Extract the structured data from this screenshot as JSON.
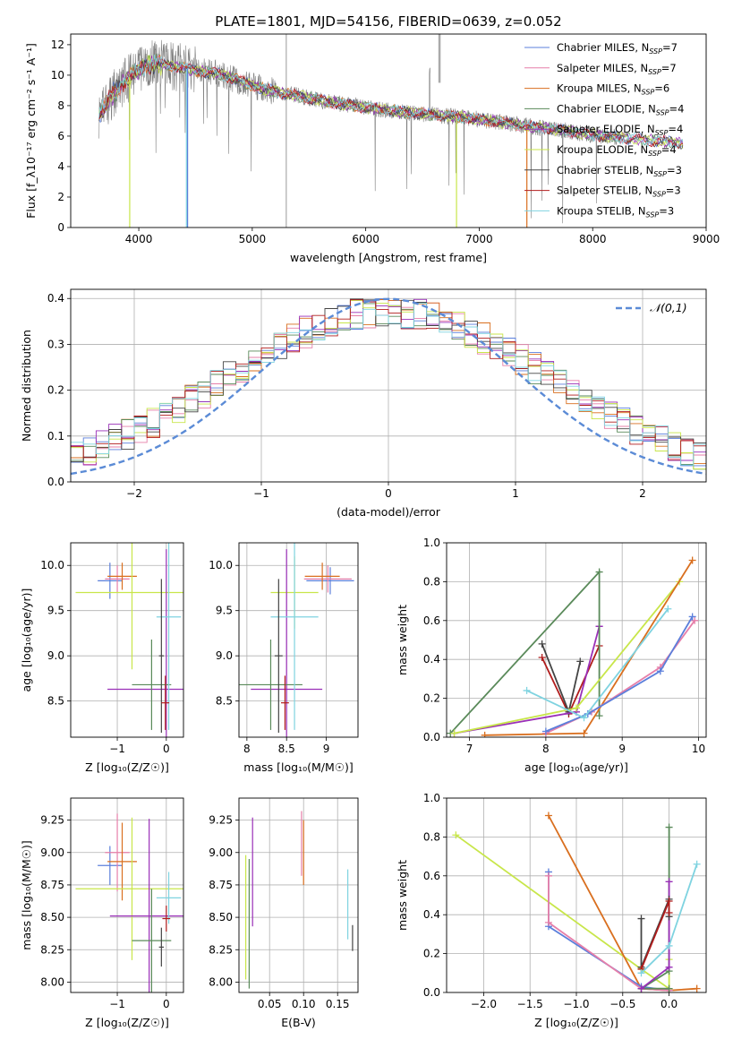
{
  "title": "PLATE=1801, MJD=54156, FIBERID=0639, z=0.052",
  "colors": {
    "chabrier_miles": "#5b7fdb",
    "salpeter_miles": "#e67fa9",
    "kroupa_miles": "#d96f1f",
    "chabrier_elodie": "#5a8a5a",
    "salpeter_elodie": "#9a2fb8",
    "kroupa_elodie": "#c8e64a",
    "chabrier_stelib": "#444444",
    "salpeter_stelib": "#b01c1c",
    "kroupa_stelib": "#7fd3e0",
    "data": "#808080",
    "gauss": "#5b8bd6"
  },
  "chart_data": [
    {
      "id": "spectrum",
      "type": "line",
      "xlabel": "wavelength [Angstrom, rest frame]",
      "ylabel": "Flux [f_λ10⁻¹⁷ erg cm⁻² s⁻¹ A⁻¹]",
      "xlim": [
        3400,
        9000
      ],
      "ylim": [
        0,
        12.7
      ],
      "xticks": [
        4000,
        5000,
        6000,
        7000,
        8000,
        9000
      ],
      "yticks": [
        0,
        2,
        4,
        6,
        8,
        10,
        12
      ],
      "grid": false,
      "legend_position": "top-right",
      "legend": [
        {
          "base": "Chabrier MILES, N",
          "sub": "SSP",
          "tail": "=7",
          "color_key": "chabrier_miles"
        },
        {
          "base": "Salpeter MILES, N",
          "sub": "SSP",
          "tail": "=7",
          "color_key": "salpeter_miles"
        },
        {
          "base": "Kroupa MILES, N",
          "sub": "SSP",
          "tail": "=6",
          "color_key": "kroupa_miles"
        },
        {
          "base": "Chabrier ELODIE, N",
          "sub": "SSP",
          "tail": "=4",
          "color_key": "chabrier_elodie"
        },
        {
          "base": "Salpeter ELODIE, N",
          "sub": "SSP",
          "tail": "=4",
          "color_key": "salpeter_elodie"
        },
        {
          "base": "Kroupa ELODIE, N",
          "sub": "SSP",
          "tail": "=4",
          "color_key": "kroupa_elodie"
        },
        {
          "base": "Chabrier STELIB, N",
          "sub": "SSP",
          "tail": "=3",
          "color_key": "chabrier_stelib"
        },
        {
          "base": "Salpeter STELIB, N",
          "sub": "SSP",
          "tail": "=3",
          "color_key": "salpeter_stelib"
        },
        {
          "base": "Kroupa STELIB, N",
          "sub": "SSP",
          "tail": "=3",
          "color_key": "kroupa_stelib"
        }
      ],
      "continuum": {
        "x": [
          3650,
          3800,
          3950,
          4100,
          4300,
          4500,
          4700,
          4900,
          5100,
          5300,
          5500,
          5700,
          6000,
          6300,
          6600,
          6900,
          7200,
          7500,
          7800,
          8100,
          8400,
          8700,
          8900
        ],
        "y": [
          7.4,
          9.0,
          10.1,
          10.8,
          10.6,
          10.3,
          10.1,
          9.6,
          9.1,
          8.8,
          8.5,
          8.2,
          7.9,
          7.6,
          7.4,
          7.2,
          6.9,
          6.6,
          6.3,
          6.0,
          5.8,
          5.6,
          5.4
        ]
      },
      "data_range": [
        3650,
        8250
      ],
      "model_dropouts": [
        {
          "series": "kroupa_elodie",
          "x": 3920
        },
        {
          "series": "kroupa_stelib",
          "x": 4420
        },
        {
          "series": "chabrier_miles",
          "x": 4430
        },
        {
          "series": "kroupa_elodie",
          "x": 6800
        },
        {
          "series": "kroupa_miles",
          "x": 7420
        }
      ]
    },
    {
      "id": "residuals",
      "type": "histogram",
      "xlabel": "(data-model)/error",
      "ylabel": "Normed distribution",
      "xlim": [
        -2.5,
        2.5
      ],
      "ylim": [
        0,
        0.42
      ],
      "xticks": [
        -2,
        -1,
        0,
        1,
        2
      ],
      "yticks": [
        0.0,
        0.1,
        0.2,
        0.3,
        0.4
      ],
      "grid": true,
      "legend_position": "top-right",
      "legend_label": "𝒩(0,1)",
      "bin_width": 0.1,
      "series_keys": [
        "chabrier_miles",
        "salpeter_miles",
        "kroupa_miles",
        "chabrier_elodie",
        "salpeter_elodie",
        "kroupa_elodie",
        "chabrier_stelib",
        "salpeter_stelib",
        "kroupa_stelib"
      ]
    },
    {
      "id": "age-vs-Z",
      "type": "errorbar",
      "xlabel": "Z [log₁₀(Z/Z☉)]",
      "ylabel": "age  [log₁₀(age/yr)]",
      "xlim": [
        -1.95,
        0.35
      ],
      "ylim": [
        8.1,
        10.25
      ],
      "xticks": [
        -1,
        0
      ],
      "yticks": [
        8.5,
        9.0,
        9.5,
        10.0
      ],
      "grid": true,
      "points": [
        {
          "key": "chabrier_miles",
          "x": -1.15,
          "xerr": 0.25,
          "y": 9.83,
          "yerr": 0.2
        },
        {
          "key": "salpeter_miles",
          "x": -1.0,
          "xerr": 0.25,
          "y": 9.85,
          "yerr": 0.15
        },
        {
          "key": "kroupa_miles",
          "x": -0.9,
          "xerr": 0.3,
          "y": 9.88,
          "yerr": 0.15
        },
        {
          "key": "kroupa_elodie",
          "x": -0.7,
          "xerr": 1.15,
          "y": 9.7,
          "yerr": 0.85
        },
        {
          "key": "salpeter_elodie",
          "x": 0.0,
          "xerr": 1.2,
          "y": 8.63,
          "yerr": 1.55
        },
        {
          "key": "chabrier_elodie",
          "x": -0.3,
          "xerr": 0.4,
          "y": 8.68,
          "yerr": 0.5
        },
        {
          "key": "kroupa_stelib",
          "x": 0.05,
          "xerr": 0.25,
          "y": 9.43,
          "yerr": 1.25
        },
        {
          "key": "chabrier_stelib",
          "x": -0.1,
          "xerr": 0.05,
          "y": 9.0,
          "yerr": 0.85
        },
        {
          "key": "salpeter_stelib",
          "x": -0.02,
          "xerr": 0.08,
          "y": 8.48,
          "yerr": 0.3
        }
      ]
    },
    {
      "id": "age-vs-mass",
      "type": "errorbar",
      "xlabel": "mass [log₁₀(M/M☉)]",
      "ylabel": "",
      "xlim": [
        7.9,
        9.4
      ],
      "ylim": [
        8.1,
        10.25
      ],
      "xticks": [
        8.0,
        8.5,
        9.0
      ],
      "yticks": [
        8.5,
        9.0,
        9.5,
        10.0
      ],
      "grid": true,
      "points": [
        {
          "key": "chabrier_miles",
          "x": 9.05,
          "xerr": 0.3,
          "y": 9.83,
          "yerr": 0.15
        },
        {
          "key": "salpeter_miles",
          "x": 9.02,
          "xerr": 0.3,
          "y": 9.85,
          "yerr": 0.15
        },
        {
          "key": "kroupa_miles",
          "x": 8.95,
          "xerr": 0.22,
          "y": 9.88,
          "yerr": 0.15
        },
        {
          "key": "kroupa_elodie",
          "x": 8.6,
          "xerr": 0.3,
          "y": 9.7,
          "yerr": 0.4
        },
        {
          "key": "salpeter_elodie",
          "x": 8.5,
          "xerr": 0.45,
          "y": 8.63,
          "yerr": 1.55
        },
        {
          "key": "chabrier_elodie",
          "x": 8.3,
          "xerr": 0.4,
          "y": 8.68,
          "yerr": 0.5
        },
        {
          "key": "kroupa_stelib",
          "x": 8.6,
          "xerr": 0.3,
          "y": 9.43,
          "yerr": 1.25
        },
        {
          "key": "chabrier_stelib",
          "x": 8.4,
          "xerr": 0.05,
          "y": 9.0,
          "yerr": 0.85
        },
        {
          "key": "salpeter_stelib",
          "x": 8.48,
          "xerr": 0.05,
          "y": 8.48,
          "yerr": 0.3
        }
      ]
    },
    {
      "id": "massweight-vs-age",
      "type": "line",
      "xlabel": "age  [log₁₀(age/yr)]",
      "ylabel": "mass weight",
      "xlim": [
        6.7,
        10.1
      ],
      "ylim": [
        0.0,
        1.0
      ],
      "xticks": [
        7,
        8,
        9,
        10
      ],
      "yticks": [
        0.0,
        0.2,
        0.4,
        0.6,
        0.8,
        1.0
      ],
      "grid": true,
      "series": [
        {
          "key": "salpeter_stelib",
          "x": [
            7.95,
            8.3,
            8.7
          ],
          "y": [
            0.41,
            0.12,
            0.47
          ]
        },
        {
          "key": "chabrier_stelib",
          "x": [
            7.95,
            8.3,
            8.45
          ],
          "y": [
            0.48,
            0.13,
            0.39
          ]
        },
        {
          "key": "salpeter_elodie",
          "x": [
            6.8,
            8.4,
            8.7,
            8.7
          ],
          "y": [
            0.02,
            0.13,
            0.57,
            0.57
          ]
        },
        {
          "key": "chabrier_elodie",
          "x": [
            6.75,
            8.7,
            8.7
          ],
          "y": [
            0.02,
            0.85,
            0.11
          ]
        },
        {
          "key": "kroupa_elodie",
          "x": [
            6.8,
            8.4,
            9.75
          ],
          "y": [
            0.02,
            0.15,
            0.8
          ]
        },
        {
          "key": "kroupa_miles",
          "x": [
            7.2,
            8.5,
            9.92
          ],
          "y": [
            0.01,
            0.02,
            0.91
          ]
        },
        {
          "key": "salpeter_miles",
          "x": [
            8.0,
            8.6,
            9.5,
            9.95
          ],
          "y": [
            0.02,
            0.13,
            0.36,
            0.6
          ]
        },
        {
          "key": "chabrier_miles",
          "x": [
            8.0,
            8.55,
            9.5,
            9.92
          ],
          "y": [
            0.03,
            0.12,
            0.34,
            0.62
          ]
        },
        {
          "key": "kroupa_stelib",
          "x": [
            7.75,
            8.5,
            9.6
          ],
          "y": [
            0.24,
            0.1,
            0.66
          ]
        }
      ]
    },
    {
      "id": "mass-vs-Z",
      "type": "errorbar",
      "xlabel": "Z [log₁₀(Z/Z☉)]",
      "ylabel": "mass [log₁₀(M/M☉)]",
      "xlim": [
        -1.95,
        0.35
      ],
      "ylim": [
        7.92,
        9.42
      ],
      "xticks": [
        -1,
        0
      ],
      "yticks": [
        8.0,
        8.25,
        8.5,
        8.75,
        9.0,
        9.25
      ],
      "grid": true,
      "points": [
        {
          "key": "chabrier_miles",
          "x": -1.15,
          "xerr": 0.25,
          "y": 8.9,
          "yerr": 0.15
        },
        {
          "key": "salpeter_miles",
          "x": -1.0,
          "xerr": 0.25,
          "y": 9.0,
          "yerr": 0.3
        },
        {
          "key": "kroupa_miles",
          "x": -0.9,
          "xerr": 0.3,
          "y": 8.93,
          "yerr": 0.3
        },
        {
          "key": "kroupa_elodie",
          "x": -0.7,
          "xerr": 1.15,
          "y": 8.72,
          "yerr": 0.55
        },
        {
          "key": "salpeter_elodie",
          "x": -0.35,
          "xerr": 0.8,
          "y": 8.51,
          "yerr": 0.75
        },
        {
          "key": "chabrier_elodie",
          "x": -0.3,
          "xerr": 0.4,
          "y": 8.32,
          "yerr": 0.4
        },
        {
          "key": "kroupa_stelib",
          "x": 0.05,
          "xerr": 0.25,
          "y": 8.65,
          "yerr": 0.2
        },
        {
          "key": "chabrier_stelib",
          "x": -0.1,
          "xerr": 0.05,
          "y": 8.27,
          "yerr": 0.15
        },
        {
          "key": "salpeter_stelib",
          "x": 0.0,
          "xerr": 0.08,
          "y": 8.49,
          "yerr": 0.1
        }
      ]
    },
    {
      "id": "mass-vs-ebv",
      "type": "errorbar",
      "xlabel": "E(B-V)",
      "ylabel": "",
      "xlim": [
        0.005,
        0.18
      ],
      "ylim": [
        7.92,
        9.42
      ],
      "xticks": [
        0.05,
        0.1,
        0.15
      ],
      "xtick_labels": [
        "0.05",
        "0.10",
        "0.15"
      ],
      "yticks": [
        8.0,
        8.25,
        8.5,
        8.75,
        9.0,
        9.25
      ],
      "grid": true,
      "points": [
        {
          "key": "salpeter_elodie",
          "x": 0.025,
          "y": 8.85,
          "yerr": 0.42
        },
        {
          "key": "chabrier_elodie",
          "x": 0.02,
          "y": 8.45,
          "yerr": 0.5
        },
        {
          "key": "kroupa_elodie",
          "x": 0.015,
          "y": 8.5,
          "yerr": 0.48
        },
        {
          "key": "salpeter_miles",
          "x": 0.097,
          "y": 9.07,
          "yerr": 0.25
        },
        {
          "key": "kroupa_miles",
          "x": 0.1,
          "y": 9.0,
          "yerr": 0.25
        },
        {
          "key": "kroupa_stelib",
          "x": 0.165,
          "y": 8.6,
          "yerr": 0.27
        },
        {
          "key": "chabrier_stelib",
          "x": 0.172,
          "y": 8.34,
          "yerr": 0.1
        }
      ]
    },
    {
      "id": "massweight-vs-Z",
      "type": "line",
      "xlabel": "Z [log₁₀(Z/Z☉)]",
      "ylabel": "mass weight",
      "xlim": [
        -2.4,
        0.4
      ],
      "ylim": [
        0.0,
        1.0
      ],
      "xticks": [
        -2.0,
        -1.5,
        -1.0,
        -0.5,
        0.0
      ],
      "xtick_labels": [
        "−2.0",
        "−1.5",
        "−1.0",
        "−0.5",
        "0.0"
      ],
      "yticks": [
        0.0,
        0.2,
        0.4,
        0.6,
        0.8,
        1.0
      ],
      "grid": true,
      "series": [
        {
          "key": "kroupa_elodie",
          "x": [
            -2.3,
            -0.3,
            0.0,
            0.0
          ],
          "y": [
            0.81,
            0.12,
            0.02,
            0.17
          ]
        },
        {
          "key": "kroupa_miles",
          "x": [
            -1.3,
            -0.3,
            0.0,
            0.3
          ],
          "y": [
            0.91,
            0.02,
            0.01,
            0.02
          ]
        },
        {
          "key": "chabrier_miles",
          "x": [
            -1.3,
            -1.3,
            -0.3,
            0.0
          ],
          "y": [
            0.62,
            0.34,
            0.03,
            0.01
          ]
        },
        {
          "key": "salpeter_miles",
          "x": [
            -1.3,
            -1.3,
            -0.3,
            0.0
          ],
          "y": [
            0.6,
            0.36,
            0.02,
            0.01
          ]
        },
        {
          "key": "chabrier_elodie",
          "x": [
            0.0,
            0.0,
            -0.3,
            0.0
          ],
          "y": [
            0.85,
            0.11,
            0.02,
            0.02
          ]
        },
        {
          "key": "salpeter_elodie",
          "x": [
            0.0,
            0.0,
            -0.3
          ],
          "y": [
            0.57,
            0.13,
            0.02
          ]
        },
        {
          "key": "chabrier_stelib",
          "x": [
            -0.3,
            -0.3,
            0.0,
            0.0
          ],
          "y": [
            0.38,
            0.13,
            0.48,
            0.39
          ]
        },
        {
          "key": "salpeter_stelib",
          "x": [
            -0.3,
            0.0,
            0.0
          ],
          "y": [
            0.12,
            0.47,
            0.41
          ]
        },
        {
          "key": "kroupa_stelib",
          "x": [
            -0.3,
            0.0,
            0.3
          ],
          "y": [
            0.1,
            0.24,
            0.66
          ]
        }
      ]
    }
  ]
}
